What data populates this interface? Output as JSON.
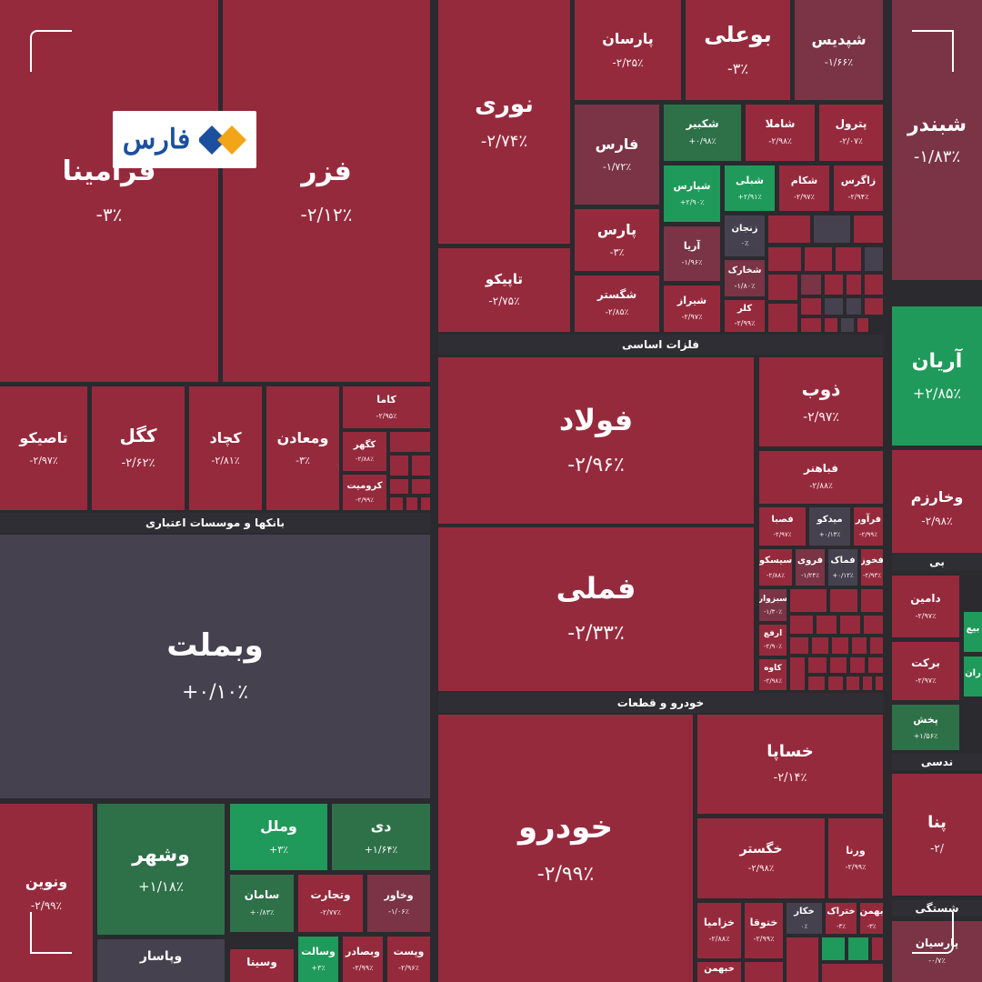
{
  "logo": {
    "text": "فارس"
  },
  "colors": {
    "down_strong": "#962a3d",
    "down_mild": "#7a3446",
    "neutral": "#46414f",
    "up_mild": "#2e7149",
    "up_strong": "#1f9a5a",
    "logo_blue": "#1c4f9e",
    "logo_orange": "#f2a516"
  },
  "sectors": [
    {
      "id": "s-metals",
      "label": "فلزات اساسی"
    },
    {
      "id": "s-banks",
      "label": "بانکها و موسسات اعتباری"
    },
    {
      "id": "s-auto",
      "label": "خودرو و قطعات"
    },
    {
      "id": "s-eng",
      "label": "ندسی"
    },
    {
      "id": "s-edge",
      "label": "شستگی"
    },
    {
      "id": "s-edge2",
      "label": "بی"
    }
  ],
  "chart_data": {
    "type": "treemap",
    "cells": [
      {
        "id": "c-fameli",
        "name": "فملی",
        "change": "-۲/۳۳٪",
        "value": -2.33
      },
      {
        "id": "c-foolad",
        "name": "فولاد",
        "change": "-۲/۹۶٪",
        "value": -2.96
      },
      {
        "id": "c-khodro",
        "name": "خودرو",
        "change": "-۲/۹۹٪",
        "value": -2.99
      },
      {
        "id": "c-vabmelat",
        "name": "وبملت",
        "change": "+۰/۱۰٪",
        "value": 0.1
      },
      {
        "id": "c-fazar",
        "name": "فزر",
        "change": "-۲/۱۲٪",
        "value": -2.12
      },
      {
        "id": "c-foramina",
        "name": "فرامینا",
        "change": "-۳٪",
        "value": -3
      },
      {
        "id": "c-noori",
        "name": "نوری",
        "change": "-۲/۷۴٪",
        "value": -2.74
      },
      {
        "id": "c-tapiko",
        "name": "تاپیکو",
        "change": "-۲/۷۵٪",
        "value": -2.75
      },
      {
        "id": "c-parsan",
        "name": "پارسان",
        "change": "-۲/۲۵٪",
        "value": -2.25
      },
      {
        "id": "c-booali",
        "name": "بوعلی",
        "change": "-۳٪",
        "value": -3
      },
      {
        "id": "c-shepdis",
        "name": "شپدیس",
        "change": "-۱/۶۶٪",
        "value": -1.66
      },
      {
        "id": "c-fars",
        "name": "فارس",
        "change": "-۱/۷۲٪",
        "value": -1.72
      },
      {
        "id": "c-shakbir",
        "name": "شکبیر",
        "change": "+۰/۹۸٪",
        "value": 0.98
      },
      {
        "id": "c-shamla",
        "name": "شاملا",
        "change": "-۲/۹۸٪",
        "value": -2.98
      },
      {
        "id": "c-petrol",
        "name": "پترول",
        "change": "-۲/۰۷٪",
        "value": -2.07
      },
      {
        "id": "c-shiparas",
        "name": "شپارس",
        "change": "+۲/۹۰٪",
        "value": 2.9
      },
      {
        "id": "c-shebli",
        "name": "شبلی",
        "change": "+۲/۹۱٪",
        "value": 2.91
      },
      {
        "id": "c-shekam",
        "name": "شکام",
        "change": "-۲/۹۷٪",
        "value": -2.97
      },
      {
        "id": "c-zagros",
        "name": "زاگرس",
        "change": "-۲/۹۴٪",
        "value": -2.94
      },
      {
        "id": "c-pars",
        "name": "پارس",
        "change": "-۳٪",
        "value": -3
      },
      {
        "id": "c-arya",
        "name": "آریا",
        "change": "-۱/۹۶٪",
        "value": -1.96
      },
      {
        "id": "c-zanjan",
        "name": "زنجان",
        "change": "۰٪",
        "value": 0
      },
      {
        "id": "c-shekharak",
        "name": "شخارک",
        "change": "-۱/۸۰٪",
        "value": -1.8
      },
      {
        "id": "c-shegostar",
        "name": "شگستر",
        "change": "-۲/۸۵٪",
        "value": -2.85
      },
      {
        "id": "c-shiraz",
        "name": "شیراز",
        "change": "-۲/۹۷٪",
        "value": -2.97
      },
      {
        "id": "c-kalar",
        "name": "کلر",
        "change": "-۲/۹۹٪",
        "value": -2.99
      },
      {
        "id": "c-shabandar",
        "name": "شبندر",
        "change": "-۱/۸۳٪",
        "value": -1.83
      },
      {
        "id": "c-aryan",
        "name": "آریان",
        "change": "+۲/۸۵٪",
        "value": 2.85
      },
      {
        "id": "c-vakharazm",
        "name": "وخارزم",
        "change": "-۲/۹۸٪",
        "value": -2.98
      },
      {
        "id": "c-tasiko",
        "name": "تاصیکو",
        "change": "-۲/۹۷٪",
        "value": -2.97
      },
      {
        "id": "c-kegol",
        "name": "کگل",
        "change": "-۲/۶۲٪",
        "value": -2.62
      },
      {
        "id": "c-kechad",
        "name": "کچاد",
        "change": "-۲/۸۱٪",
        "value": -2.81
      },
      {
        "id": "c-vamaaden",
        "name": "ومعادن",
        "change": "-۳٪",
        "value": -3
      },
      {
        "id": "c-kama",
        "name": "کاما",
        "change": "-۲/۹۵٪",
        "value": -2.95
      },
      {
        "id": "c-kaghar",
        "name": "کگهر",
        "change": "-۲/۸۸٪",
        "value": -2.88
      },
      {
        "id": "c-kromit",
        "name": "کرومیت",
        "change": "-۲/۹۹٪",
        "value": -2.99
      },
      {
        "id": "c-zob",
        "name": "ذوب",
        "change": "-۲/۹۷٪",
        "value": -2.97
      },
      {
        "id": "c-fahner",
        "name": "فباهنر",
        "change": "-۲/۸۸٪",
        "value": -2.88
      },
      {
        "id": "c-fasba",
        "name": "فصبا",
        "change": "-۲/۹۷٪",
        "value": -2.97
      },
      {
        "id": "c-midko",
        "name": "میدکو",
        "change": "+۰/۱۳٪",
        "value": 0.13
      },
      {
        "id": "c-farvar",
        "name": "فرآور",
        "change": "-۲/۹۹٪",
        "value": -2.99
      },
      {
        "id": "c-sisko",
        "name": "سیسکو",
        "change": "-۲/۸۸٪",
        "value": -2.88
      },
      {
        "id": "c-ferooy",
        "name": "فروی",
        "change": "-۱/۲۴٪",
        "value": -1.24
      },
      {
        "id": "c-fmak",
        "name": "فماک",
        "change": "+۰/۱۲٪",
        "value": 0.12
      },
      {
        "id": "c-fkhooz",
        "name": "فخوز",
        "change": "-۲/۹۳٪",
        "value": -2.93
      },
      {
        "id": "c-sabzevar",
        "name": "سبزوار",
        "change": "-۱/۳۰٪",
        "value": -1.3
      },
      {
        "id": "c-arfa",
        "name": "ارفع",
        "change": "-۲/۹۰٪",
        "value": -2.9
      },
      {
        "id": "c-kaveh",
        "name": "کاوه",
        "change": "-۲/۹۸٪",
        "value": -2.98
      },
      {
        "id": "c-khasapa",
        "name": "خساپا",
        "change": "-۲/۱۴٪",
        "value": -2.14
      },
      {
        "id": "c-khegostar",
        "name": "خگستر",
        "change": "-۲/۹۸٪",
        "value": -2.98
      },
      {
        "id": "c-varna",
        "name": "ورنا",
        "change": "-۲/۹۹٪",
        "value": -2.99
      },
      {
        "id": "c-khazamia",
        "name": "خزامیا",
        "change": "-۲/۸۸٪",
        "value": -2.88
      },
      {
        "id": "c-khotooga",
        "name": "ختوقا",
        "change": "-۲/۹۹٪",
        "value": -2.99
      },
      {
        "id": "c-khekar",
        "name": "خکار",
        "change": "۰٪",
        "value": 0
      },
      {
        "id": "c-khetrak",
        "name": "ختراک",
        "change": "-۳٪",
        "value": -3
      },
      {
        "id": "c-bahman",
        "name": "بهمن",
        "change": "-۳٪",
        "value": -3
      },
      {
        "id": "c-kheybahman",
        "name": "خبهمن",
        "change": "",
        "value": -2.9
      },
      {
        "id": "c-vonovin",
        "name": "ونوین",
        "change": "-۲/۹۹٪",
        "value": -2.99
      },
      {
        "id": "c-vashahr",
        "name": "وشهر",
        "change": "+۱/۱۸٪",
        "value": 1.18
      },
      {
        "id": "c-vamellal",
        "name": "وملل",
        "change": "+۳٪",
        "value": 3
      },
      {
        "id": "c-dey",
        "name": "دی",
        "change": "+۱/۶۴٪",
        "value": 1.64
      },
      {
        "id": "c-saman",
        "name": "سامان",
        "change": "+۰/۸۳٪",
        "value": 0.83
      },
      {
        "id": "c-vatejarat",
        "name": "وتجارت",
        "change": "-۲/۷۷٪",
        "value": -2.77
      },
      {
        "id": "c-vakhavar",
        "name": "وخاور",
        "change": "-۱/۰۶٪",
        "value": -1.06
      },
      {
        "id": "c-vapasar",
        "name": "وپاسار",
        "change": "",
        "value": 0.05
      },
      {
        "id": "c-vasina",
        "name": "وسینا",
        "change": "",
        "value": -2.5
      },
      {
        "id": "c-vesalat",
        "name": "وسالت",
        "change": "+۳٪",
        "value": 3
      },
      {
        "id": "c-vabsadar",
        "name": "وبصادر",
        "change": "-۲/۹۹٪",
        "value": -2.99
      },
      {
        "id": "c-vapost",
        "name": "وپست",
        "change": "-۲/۹۶٪",
        "value": -2.96
      },
      {
        "id": "c-damin",
        "name": "دامین",
        "change": "-۲/۹۷٪",
        "value": -2.97
      },
      {
        "id": "c-barkat",
        "name": "برکت",
        "change": "-۲/۹۷٪",
        "value": -2.97
      },
      {
        "id": "c-pakhsh",
        "name": "پخش",
        "change": "+۱/۵۶٪",
        "value": 1.56
      },
      {
        "id": "c-pena",
        "name": "پنا",
        "change": "-۲/",
        "value": -2.5
      },
      {
        "id": "c-parsian",
        "name": "پارسیان",
        "change": "-۰/۷٪",
        "value": -0.7
      },
      {
        "id": "c-bee",
        "name": "بیع",
        "change": "",
        "value": 2.5
      },
      {
        "id": "c-iran",
        "name": "ران",
        "change": "",
        "value": 2.5
      }
    ]
  }
}
